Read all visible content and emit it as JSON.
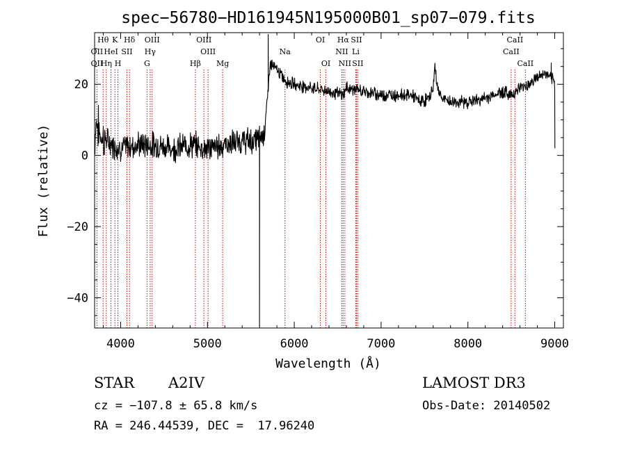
{
  "chart_data": {
    "type": "line",
    "title": "spec−56780−HD161945N195000B01_sp07−079.fits",
    "xlabel": "Wavelength (Å)",
    "ylabel": "Flux (relative)",
    "xlim": [
      3700,
      9100
    ],
    "ylim": [
      -48.5,
      34.5
    ],
    "x_ticks": [
      4000,
      5000,
      6000,
      7000,
      8000,
      9000
    ],
    "x_tick_labels": [
      "4000",
      "5000",
      "6000",
      "7000",
      "8000",
      "9000"
    ],
    "y_ticks": [
      20,
      0,
      -20,
      -40
    ],
    "y_tick_labels": [
      "20",
      "0",
      "−20",
      "−40"
    ],
    "spectrum_anchors": {
      "x": [
        3700,
        3720,
        3760,
        3800,
        3900,
        4000,
        4200,
        4400,
        4600,
        4800,
        5000,
        5200,
        5400,
        5550,
        5650,
        5700,
        5720,
        5800,
        5900,
        6000,
        6200,
        6400,
        6562,
        6600,
        6800,
        7000,
        7200,
        7350,
        7450,
        7550,
        7600,
        7620,
        7650,
        7700,
        7800,
        8000,
        8200,
        8400,
        8500,
        8600,
        8700,
        8800,
        8900,
        8980,
        9000
      ],
      "y": [
        4,
        10,
        6,
        5,
        3,
        2,
        3,
        3,
        2,
        3,
        2,
        3,
        4,
        4,
        6,
        18,
        26,
        24,
        21,
        20,
        19,
        18,
        17,
        19,
        18,
        17,
        17,
        17,
        15,
        16,
        19,
        25,
        19,
        16,
        15,
        15,
        16,
        18,
        17,
        19,
        20,
        22,
        23,
        21,
        20
      ]
    },
    "spectrum_features": [
      {
        "x": 5600,
        "y": -48,
        "type": "dropout"
      },
      {
        "x": 5700,
        "y": 34,
        "type": "spike"
      },
      {
        "x": 8960,
        "y": 26,
        "type": "spike"
      }
    ],
    "line_markers": [
      {
        "label": "Hθ",
        "wavelength": 3798,
        "row": 0
      },
      {
        "label": "K",
        "wavelength": 3934,
        "row": 0
      },
      {
        "label": "Hδ",
        "wavelength": 4102,
        "row": 0
      },
      {
        "label": "OIII",
        "wavelength": 4363,
        "row": 0
      },
      {
        "label": "OIII",
        "wavelength": 4959,
        "row": 0
      },
      {
        "label": "OI",
        "wavelength": 6300,
        "row": 0
      },
      {
        "label": "Hα",
        "wavelength": 6563,
        "row": 0
      },
      {
        "label": "SII",
        "wavelength": 6716,
        "row": 0
      },
      {
        "label": "CaII",
        "wavelength": 8542,
        "row": 0
      },
      {
        "label": "OII",
        "wavelength": 3727,
        "row": 1
      },
      {
        "label": "HeI",
        "wavelength": 3889,
        "row": 1
      },
      {
        "label": "SII",
        "wavelength": 4072,
        "row": 1
      },
      {
        "label": "Hγ",
        "wavelength": 4340,
        "row": 1
      },
      {
        "label": "OIII",
        "wavelength": 5007,
        "row": 1
      },
      {
        "label": "Na",
        "wavelength": 5893,
        "row": 1
      },
      {
        "label": "NII",
        "wavelength": 6548,
        "row": 1
      },
      {
        "label": "Li",
        "wavelength": 6708,
        "row": 1
      },
      {
        "label": "CaII",
        "wavelength": 8498,
        "row": 1
      },
      {
        "label": "OII",
        "wavelength": 3727,
        "row": 2
      },
      {
        "label": "Hη",
        "wavelength": 3835,
        "row": 2
      },
      {
        "label": "H",
        "wavelength": 3969,
        "row": 2
      },
      {
        "label": "G",
        "wavelength": 4304,
        "row": 2
      },
      {
        "label": "Hβ",
        "wavelength": 4861,
        "row": 2
      },
      {
        "label": "Mg",
        "wavelength": 5175,
        "row": 2
      },
      {
        "label": "OI",
        "wavelength": 6364,
        "row": 2
      },
      {
        "label": "NII",
        "wavelength": 6583,
        "row": 2
      },
      {
        "label": "SII",
        "wavelength": 6731,
        "row": 2
      },
      {
        "label": "CaII",
        "wavelength": 8662,
        "row": 2
      }
    ]
  },
  "info": {
    "object_class": "STAR",
    "subclass": "A2IV",
    "survey": "LAMOST DR3",
    "cz": "cz = −107.8 ± 65.8 km/s",
    "obs_date": "Obs-Date: 20140502",
    "radec": "RA = 246.44539, DEC =  17.96240"
  },
  "colors": {
    "foreground": "#000000",
    "line_markers": "#cc0000",
    "background": "#ffffff"
  }
}
